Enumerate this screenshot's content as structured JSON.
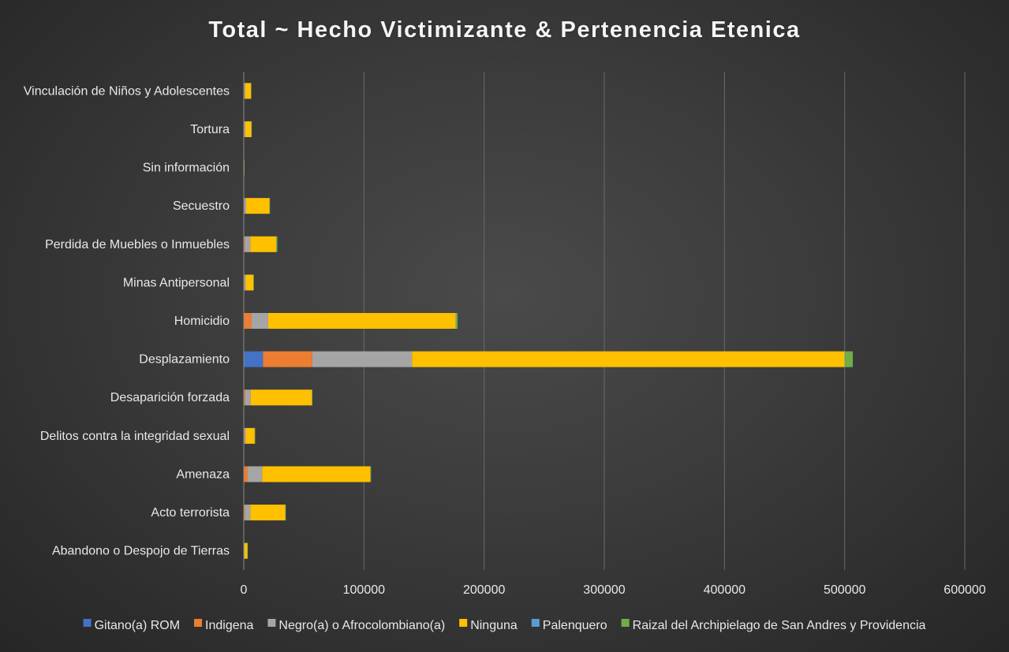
{
  "chart_data": {
    "type": "bar",
    "orientation": "horizontal",
    "stacked": true,
    "title": "Total ~ Hecho Victimizante &  Pertenencia Etenica",
    "categories": [
      "Abandono o Despojo de Tierras",
      "Acto terrorista",
      "Amenaza",
      "Delitos contra la integridad sexual",
      "Desaparición forzada",
      "Desplazamiento",
      "Homicidio",
      "Minas Antipersonal",
      "Perdida de Muebles o Inmuebles",
      "Secuestro",
      "Sin información",
      "Tortura",
      "Vinculación de Niños y Adolescentes"
    ],
    "series": [
      {
        "name": "Gitano(a) ROM",
        "color": "#4472C4",
        "values": [
          50,
          200,
          300,
          100,
          200,
          16000,
          300,
          50,
          100,
          50,
          0,
          50,
          50
        ]
      },
      {
        "name": "Indigena",
        "color": "#ED7D31",
        "values": [
          200,
          800,
          3000,
          500,
          1000,
          41000,
          6000,
          500,
          800,
          400,
          0,
          300,
          400
        ]
      },
      {
        "name": "Negro(a) o Afrocolombiano(a)",
        "color": "#A5A5A5",
        "values": [
          300,
          4500,
          12000,
          1000,
          4500,
          83000,
          14000,
          1000,
          4500,
          1500,
          100,
          800,
          700
        ]
      },
      {
        "name": "Ninguna",
        "color": "#FFC000",
        "values": [
          2400,
          29000,
          90000,
          7500,
          51000,
          360000,
          156000,
          6500,
          21500,
          19500,
          400,
          5100,
          4800
        ]
      },
      {
        "name": "Palenquero",
        "color": "#5B9BD5",
        "values": [
          0,
          50,
          100,
          0,
          50,
          300,
          100,
          0,
          50,
          0,
          0,
          0,
          0
        ]
      },
      {
        "name": "Raizal del Archipielago de San Andres y Providencia",
        "color": "#70AD47",
        "values": [
          50,
          200,
          500,
          100,
          300,
          6500,
          1500,
          50,
          1000,
          100,
          0,
          50,
          50
        ]
      }
    ],
    "x_ticks": [
      "0",
      "100000",
      "200000",
      "300000",
      "400000",
      "500000",
      "600000"
    ],
    "xlim": [
      0,
      600000
    ],
    "grid": true,
    "legend": "bottom"
  }
}
